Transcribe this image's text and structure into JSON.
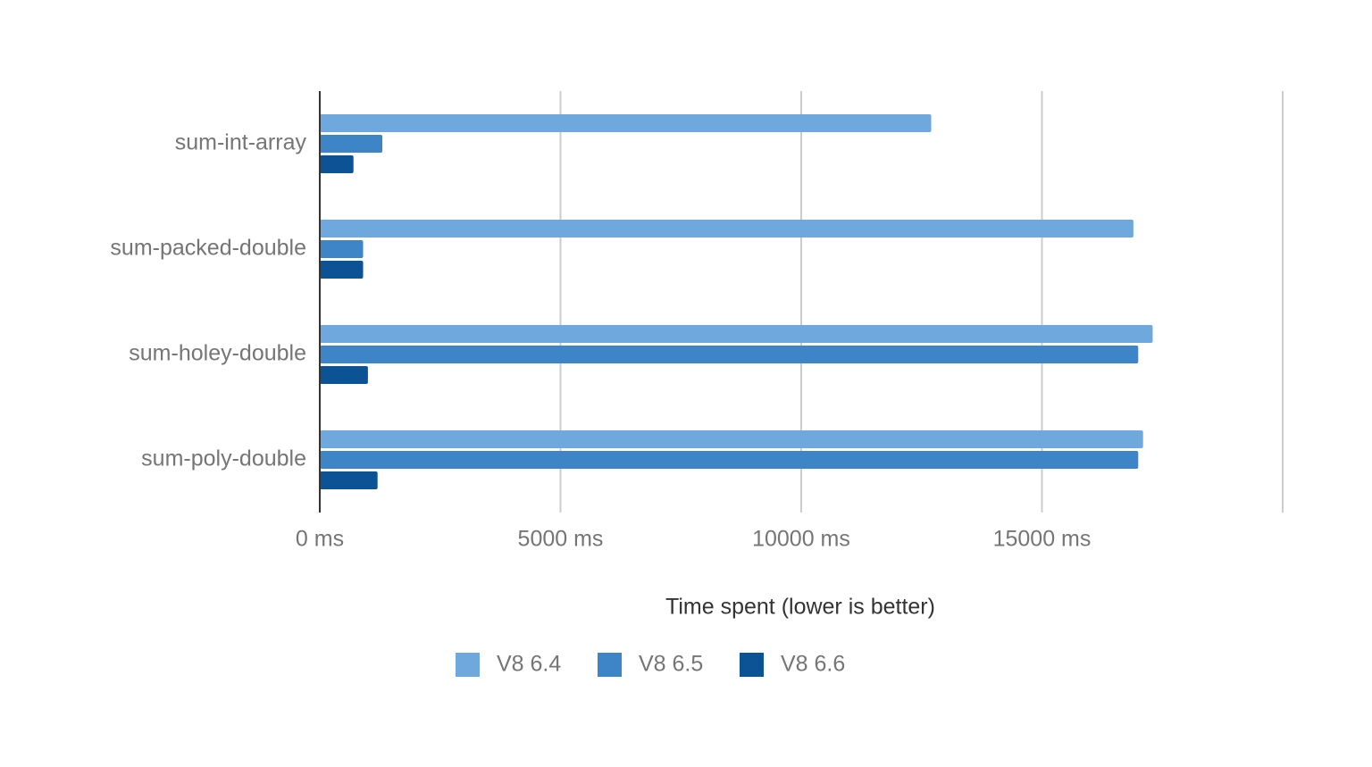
{
  "chart_data": {
    "type": "bar",
    "orientation": "horizontal",
    "x_label": "Time spent (lower is better)",
    "categories": [
      "sum-int-array",
      "sum-packed-double",
      "sum-holey-double",
      "sum-poly-double"
    ],
    "series": [
      {
        "name": "V8 6.4",
        "color": "#6fa8dc",
        "values": [
          12700,
          16900,
          17300,
          17100
        ]
      },
      {
        "name": "V8 6.5",
        "color": "#3d85c6",
        "values": [
          1300,
          900,
          17000,
          17000
        ]
      },
      {
        "name": "V8 6.6",
        "color": "#0b5394",
        "values": [
          700,
          900,
          1000,
          1200
        ]
      }
    ],
    "xlim": [
      0,
      20000
    ],
    "xticks": [
      {
        "value": 0,
        "label": "0 ms"
      },
      {
        "value": 5000,
        "label": "5000 ms"
      },
      {
        "value": 10000,
        "label": "10000 ms"
      },
      {
        "value": 15000,
        "label": "15000 ms"
      }
    ],
    "grid": true,
    "legend": "bottom"
  }
}
